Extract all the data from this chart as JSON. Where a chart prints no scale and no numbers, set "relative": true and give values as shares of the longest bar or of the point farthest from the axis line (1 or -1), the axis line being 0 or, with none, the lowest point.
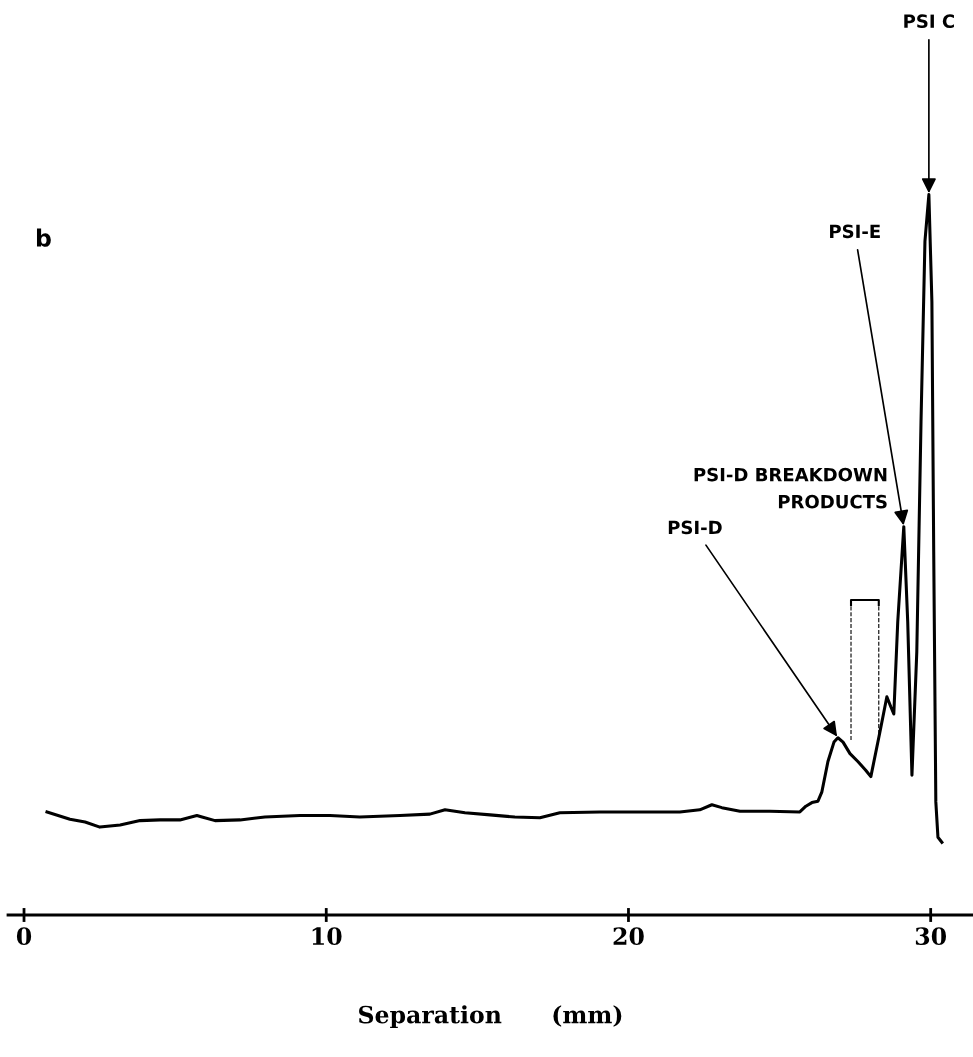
{
  "chart_data": {
    "type": "line",
    "relative": true,
    "xlabel": "Separation      (mm)",
    "xlim": [
      -0.53,
      31.4
    ],
    "xticks": [
      0,
      10,
      20,
      30
    ],
    "grid": false,
    "legend": false,
    "marker": "none",
    "line_style": "solid",
    "series": [
      {
        "color": "#000000",
        "x": [
          0.76,
          1.52,
          2.02,
          2.51,
          3.18,
          3.84,
          4.5,
          5.16,
          5.72,
          5.89,
          6.32,
          7.15,
          7.97,
          9.13,
          10.12,
          11.11,
          12.44,
          13.43,
          13.93,
          14.59,
          15.42,
          16.24,
          17.07,
          17.73,
          19.05,
          20.38,
          21.7,
          22.36,
          22.76,
          23.09,
          23.69,
          24.68,
          25.67,
          25.87,
          26.07,
          26.27,
          26.4,
          26.6,
          26.8,
          26.93,
          27.1,
          27.33,
          27.59,
          27.85,
          28.02,
          28.32,
          28.55,
          28.68,
          28.78,
          28.91,
          29.11,
          29.24,
          29.38,
          29.54,
          29.68,
          29.81,
          29.94,
          30.04,
          30.1,
          30.17,
          30.24,
          30.37
        ],
        "values": [
          0.143,
          0.133,
          0.129,
          0.122,
          0.125,
          0.131,
          0.132,
          0.132,
          0.138,
          0.136,
          0.131,
          0.132,
          0.136,
          0.138,
          0.138,
          0.136,
          0.138,
          0.14,
          0.146,
          0.142,
          0.139,
          0.136,
          0.135,
          0.142,
          0.143,
          0.143,
          0.143,
          0.146,
          0.153,
          0.149,
          0.144,
          0.144,
          0.143,
          0.151,
          0.156,
          0.158,
          0.171,
          0.213,
          0.24,
          0.246,
          0.24,
          0.224,
          0.213,
          0.201,
          0.192,
          0.254,
          0.303,
          0.289,
          0.279,
          0.407,
          0.539,
          0.407,
          0.194,
          0.365,
          0.685,
          0.935,
          1.0,
          0.851,
          0.504,
          0.157,
          0.108,
          0.101
        ]
      }
    ],
    "annotations": [
      "b",
      "PSI-D BREAKDOWN\nPRODUCTS",
      {
        "text": "PSI C",
        "x": 29.94,
        "y": 1.0
      },
      {
        "text": "PSI-E",
        "x": 29.11,
        "y": 0.539
      },
      {
        "text": "PSI-D",
        "x": 26.93,
        "y": 0.246
      }
    ]
  }
}
